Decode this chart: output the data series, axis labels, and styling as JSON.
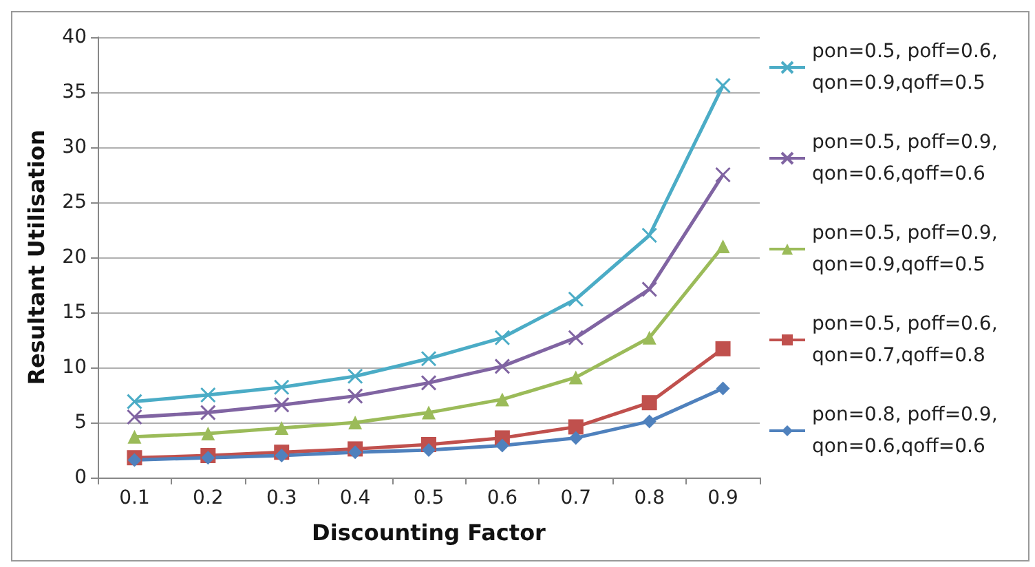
{
  "chart_data": {
    "type": "line",
    "xlabel": "Discounting Factor",
    "ylabel": "Resultant Utilisation",
    "categories": [
      "0.1",
      "0.2",
      "0.3",
      "0.4",
      "0.5",
      "0.6",
      "0.7",
      "0.8",
      "0.9"
    ],
    "ylim": [
      0,
      40
    ],
    "yticks": [
      0,
      5,
      10,
      15,
      20,
      25,
      30,
      35,
      40
    ],
    "grid": "y",
    "legend": "right",
    "line_style": "solid",
    "series": [
      {
        "name": "pon=0.5, poff=0.6, qon=0.9,qoff=0.5",
        "color": "#4bacc6",
        "marker": "cross",
        "values": [
          6.9,
          7.5,
          8.2,
          9.2,
          10.8,
          12.7,
          16.2,
          22.0,
          35.6
        ]
      },
      {
        "name": "pon=0.5, poff=0.9, qon=0.6,qoff=0.6",
        "color": "#8064a2",
        "marker": "cross",
        "values": [
          5.5,
          5.9,
          6.6,
          7.4,
          8.6,
          10.1,
          12.7,
          17.1,
          27.5
        ]
      },
      {
        "name": "pon=0.5, poff=0.9, qon=0.9,qoff=0.5",
        "color": "#9bbb59",
        "marker": "triangle",
        "values": [
          3.7,
          4.0,
          4.5,
          5.0,
          5.9,
          7.1,
          9.1,
          12.7,
          21.0
        ]
      },
      {
        "name": "pon=0.5, poff=0.6, qon=0.7,qoff=0.8",
        "color": "#c0504d",
        "marker": "square",
        "values": [
          1.8,
          2.0,
          2.3,
          2.6,
          3.0,
          3.6,
          4.6,
          6.8,
          11.7
        ]
      },
      {
        "name": "pon=0.8, poff=0.9, qon=0.6,qoff=0.6",
        "color": "#4f81bd",
        "marker": "diamond",
        "values": [
          1.6,
          1.8,
          2.0,
          2.3,
          2.5,
          2.9,
          3.6,
          5.1,
          8.1
        ]
      }
    ]
  }
}
